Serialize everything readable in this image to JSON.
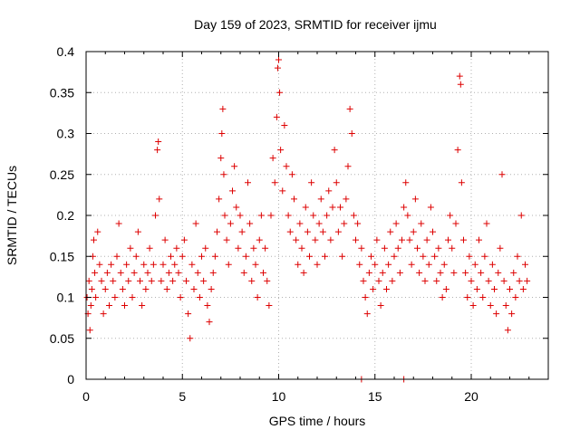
{
  "chart_data": {
    "type": "scatter",
    "title": "Day 159 of 2023, SRMTID for receiver ijmu",
    "xlabel": "GPS time / hours",
    "ylabel": "SRMTID / TECUs",
    "xlim": [
      0,
      24
    ],
    "ylim": [
      0,
      0.4
    ],
    "xticks": [
      0,
      5,
      10,
      15,
      20
    ],
    "xtick_labels": [
      "0",
      "5",
      "10",
      "15",
      "20"
    ],
    "yticks": [
      0,
      0.05,
      0.1,
      0.15,
      0.2,
      0.25,
      0.3,
      0.35,
      0.4
    ],
    "ytick_labels": [
      "0",
      "0.05",
      "0.1",
      "0.15",
      "0.2",
      "0.25",
      "0.3",
      "0.35",
      "0.4"
    ],
    "grid": true,
    "marker": "plus",
    "series": [
      {
        "name": "SRMTID",
        "color": "#dd0000",
        "points": [
          [
            0.05,
            0.1
          ],
          [
            0.1,
            0.08
          ],
          [
            0.15,
            0.12
          ],
          [
            0.2,
            0.06
          ],
          [
            0.25,
            0.09
          ],
          [
            0.3,
            0.11
          ],
          [
            0.35,
            0.15
          ],
          [
            0.4,
            0.17
          ],
          [
            0.45,
            0.13
          ],
          [
            0.5,
            0.1
          ],
          [
            0.6,
            0.18
          ],
          [
            0.7,
            0.14
          ],
          [
            0.8,
            0.12
          ],
          [
            0.9,
            0.08
          ],
          [
            1.0,
            0.11
          ],
          [
            1.1,
            0.13
          ],
          [
            1.2,
            0.09
          ],
          [
            1.3,
            0.14
          ],
          [
            1.4,
            0.12
          ],
          [
            1.5,
            0.1
          ],
          [
            1.6,
            0.15
          ],
          [
            1.7,
            0.19
          ],
          [
            1.8,
            0.13
          ],
          [
            1.9,
            0.11
          ],
          [
            2.0,
            0.09
          ],
          [
            2.1,
            0.14
          ],
          [
            2.2,
            0.12
          ],
          [
            2.3,
            0.16
          ],
          [
            2.4,
            0.1
          ],
          [
            2.5,
            0.13
          ],
          [
            2.6,
            0.15
          ],
          [
            2.7,
            0.18
          ],
          [
            2.8,
            0.12
          ],
          [
            2.9,
            0.09
          ],
          [
            3.0,
            0.14
          ],
          [
            3.1,
            0.11
          ],
          [
            3.2,
            0.13
          ],
          [
            3.3,
            0.16
          ],
          [
            3.4,
            0.12
          ],
          [
            3.5,
            0.14
          ],
          [
            3.6,
            0.2
          ],
          [
            3.7,
            0.28
          ],
          [
            3.75,
            0.29
          ],
          [
            3.8,
            0.22
          ],
          [
            3.9,
            0.12
          ],
          [
            4.0,
            0.14
          ],
          [
            4.1,
            0.17
          ],
          [
            4.2,
            0.11
          ],
          [
            4.3,
            0.13
          ],
          [
            4.4,
            0.15
          ],
          [
            4.5,
            0.12
          ],
          [
            4.6,
            0.14
          ],
          [
            4.7,
            0.16
          ],
          [
            4.8,
            0.13
          ],
          [
            4.9,
            0.1
          ],
          [
            5.0,
            0.15
          ],
          [
            5.1,
            0.17
          ],
          [
            5.2,
            0.12
          ],
          [
            5.3,
            0.08
          ],
          [
            5.4,
            0.05
          ],
          [
            5.5,
            0.14
          ],
          [
            5.6,
            0.11
          ],
          [
            5.7,
            0.19
          ],
          [
            5.8,
            0.13
          ],
          [
            5.9,
            0.1
          ],
          [
            6.0,
            0.15
          ],
          [
            6.1,
            0.12
          ],
          [
            6.2,
            0.16
          ],
          [
            6.3,
            0.09
          ],
          [
            6.4,
            0.07
          ],
          [
            6.5,
            0.11
          ],
          [
            6.6,
            0.13
          ],
          [
            6.7,
            0.15
          ],
          [
            6.8,
            0.18
          ],
          [
            6.9,
            0.22
          ],
          [
            7.0,
            0.27
          ],
          [
            7.05,
            0.3
          ],
          [
            7.1,
            0.33
          ],
          [
            7.15,
            0.25
          ],
          [
            7.2,
            0.2
          ],
          [
            7.3,
            0.17
          ],
          [
            7.4,
            0.14
          ],
          [
            7.5,
            0.19
          ],
          [
            7.6,
            0.23
          ],
          [
            7.7,
            0.26
          ],
          [
            7.8,
            0.21
          ],
          [
            7.9,
            0.16
          ],
          [
            8.0,
            0.2
          ],
          [
            8.1,
            0.18
          ],
          [
            8.2,
            0.13
          ],
          [
            8.3,
            0.15
          ],
          [
            8.4,
            0.24
          ],
          [
            8.5,
            0.19
          ],
          [
            8.6,
            0.12
          ],
          [
            8.7,
            0.16
          ],
          [
            8.8,
            0.14
          ],
          [
            8.9,
            0.1
          ],
          [
            9.0,
            0.17
          ],
          [
            9.1,
            0.2
          ],
          [
            9.2,
            0.13
          ],
          [
            9.3,
            0.16
          ],
          [
            9.4,
            0.12
          ],
          [
            9.5,
            0.09
          ],
          [
            9.6,
            0.2
          ],
          [
            9.7,
            0.27
          ],
          [
            9.8,
            0.24
          ],
          [
            9.9,
            0.32
          ],
          [
            9.95,
            0.38
          ],
          [
            10.0,
            0.39
          ],
          [
            10.05,
            0.35
          ],
          [
            10.1,
            0.28
          ],
          [
            10.2,
            0.23
          ],
          [
            10.3,
            0.31
          ],
          [
            10.4,
            0.26
          ],
          [
            10.5,
            0.2
          ],
          [
            10.6,
            0.18
          ],
          [
            10.7,
            0.25
          ],
          [
            10.8,
            0.22
          ],
          [
            10.9,
            0.17
          ],
          [
            11.0,
            0.14
          ],
          [
            11.1,
            0.19
          ],
          [
            11.2,
            0.16
          ],
          [
            11.3,
            0.13
          ],
          [
            11.4,
            0.21
          ],
          [
            11.5,
            0.18
          ],
          [
            11.6,
            0.15
          ],
          [
            11.7,
            0.24
          ],
          [
            11.8,
            0.2
          ],
          [
            11.9,
            0.17
          ],
          [
            12.0,
            0.14
          ],
          [
            12.1,
            0.19
          ],
          [
            12.2,
            0.22
          ],
          [
            12.3,
            0.18
          ],
          [
            12.4,
            0.15
          ],
          [
            12.5,
            0.2
          ],
          [
            12.6,
            0.23
          ],
          [
            12.7,
            0.17
          ],
          [
            12.8,
            0.21
          ],
          [
            12.9,
            0.28
          ],
          [
            13.0,
            0.24
          ],
          [
            13.1,
            0.18
          ],
          [
            13.2,
            0.21
          ],
          [
            13.3,
            0.15
          ],
          [
            13.4,
            0.19
          ],
          [
            13.5,
            0.22
          ],
          [
            13.6,
            0.26
          ],
          [
            13.7,
            0.33
          ],
          [
            13.8,
            0.3
          ],
          [
            13.9,
            0.2
          ],
          [
            14.0,
            0.17
          ],
          [
            14.1,
            0.19
          ],
          [
            14.2,
            0.14
          ],
          [
            14.3,
            0.16
          ],
          [
            14.4,
            0.12
          ],
          [
            14.5,
            0.1
          ],
          [
            14.6,
            0.08
          ],
          [
            14.7,
            0.13
          ],
          [
            14.8,
            0.15
          ],
          [
            14.9,
            0.11
          ],
          [
            15.0,
            0.14
          ],
          [
            15.1,
            0.17
          ],
          [
            15.2,
            0.12
          ],
          [
            15.3,
            0.09
          ],
          [
            15.4,
            0.13
          ],
          [
            15.5,
            0.16
          ],
          [
            15.6,
            0.11
          ],
          [
            15.7,
            0.14
          ],
          [
            15.8,
            0.18
          ],
          [
            15.9,
            0.12
          ],
          [
            16.0,
            0.15
          ],
          [
            16.1,
            0.19
          ],
          [
            16.2,
            0.16
          ],
          [
            16.3,
            0.13
          ],
          [
            16.4,
            0.17
          ],
          [
            16.5,
            0.21
          ],
          [
            16.6,
            0.24
          ],
          [
            16.7,
            0.2
          ],
          [
            16.8,
            0.17
          ],
          [
            16.9,
            0.14
          ],
          [
            17.0,
            0.18
          ],
          [
            17.1,
            0.22
          ],
          [
            17.2,
            0.16
          ],
          [
            17.3,
            0.13
          ],
          [
            17.4,
            0.19
          ],
          [
            17.5,
            0.15
          ],
          [
            17.6,
            0.12
          ],
          [
            17.7,
            0.17
          ],
          [
            17.8,
            0.14
          ],
          [
            17.9,
            0.21
          ],
          [
            18.0,
            0.18
          ],
          [
            18.1,
            0.15
          ],
          [
            18.2,
            0.12
          ],
          [
            18.3,
            0.16
          ],
          [
            18.4,
            0.13
          ],
          [
            18.5,
            0.1
          ],
          [
            18.6,
            0.14
          ],
          [
            18.7,
            0.11
          ],
          [
            18.8,
            0.17
          ],
          [
            18.9,
            0.2
          ],
          [
            19.0,
            0.16
          ],
          [
            19.1,
            0.13
          ],
          [
            19.2,
            0.19
          ],
          [
            19.3,
            0.28
          ],
          [
            19.4,
            0.37
          ],
          [
            19.45,
            0.36
          ],
          [
            19.5,
            0.24
          ],
          [
            19.6,
            0.17
          ],
          [
            19.7,
            0.13
          ],
          [
            19.8,
            0.1
          ],
          [
            19.9,
            0.15
          ],
          [
            20.0,
            0.12
          ],
          [
            20.1,
            0.09
          ],
          [
            20.2,
            0.14
          ],
          [
            20.3,
            0.11
          ],
          [
            20.4,
            0.17
          ],
          [
            20.5,
            0.13
          ],
          [
            20.6,
            0.1
          ],
          [
            20.7,
            0.15
          ],
          [
            20.8,
            0.19
          ],
          [
            20.9,
            0.12
          ],
          [
            21.0,
            0.09
          ],
          [
            21.1,
            0.14
          ],
          [
            21.2,
            0.11
          ],
          [
            21.3,
            0.08
          ],
          [
            21.4,
            0.13
          ],
          [
            21.5,
            0.16
          ],
          [
            21.6,
            0.25
          ],
          [
            21.7,
            0.12
          ],
          [
            21.8,
            0.09
          ],
          [
            21.9,
            0.06
          ],
          [
            22.0,
            0.11
          ],
          [
            22.1,
            0.08
          ],
          [
            22.2,
            0.13
          ],
          [
            22.3,
            0.1
          ],
          [
            22.4,
            0.15
          ],
          [
            22.5,
            0.12
          ],
          [
            22.6,
            0.2
          ],
          [
            22.7,
            0.11
          ],
          [
            22.8,
            0.14
          ],
          [
            22.9,
            0.12
          ],
          [
            14.3,
            0.0
          ],
          [
            16.5,
            0.0
          ]
        ]
      }
    ]
  }
}
